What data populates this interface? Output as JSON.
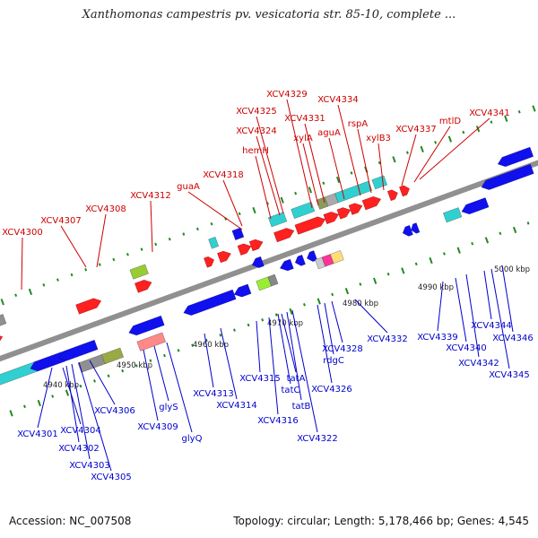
{
  "title": "Xanthomonas campestris pv. vesicatoria str. 85-10, complete ...",
  "footer": {
    "accession": "Accession: NC_007508",
    "topology": "Topology: circular; Length: 5,178,466 bp; Genes: 4,545"
  },
  "colors": {
    "backbone": "#909090",
    "forward_label": "#cc0000",
    "reverse_label": "#0000cc",
    "tick": "#228822"
  },
  "scale_labels": [
    "4940 kbp",
    "4950 kbp",
    "4960 kbp",
    "4970 kbp",
    "4980 kbp",
    "4990 kbp",
    "5000 kbp"
  ],
  "forward_genes": [
    "XCV4300",
    "XCV4307",
    "XCV4308",
    "XCV4312",
    "guaA",
    "XCV4318",
    "hemH",
    "XCV4324",
    "XCV4325",
    "XCV4329",
    "xylA",
    "XCV4331",
    "aguA",
    "XCV4334",
    "rspA",
    "xylB3",
    "XCV4337",
    "mtlD",
    "XCV4341"
  ],
  "reverse_genes": [
    "XCV4301",
    "XCV4304",
    "XCV4302",
    "XCV4303",
    "XCV4305",
    "XCV4306",
    "XCV4309",
    "glyS",
    "glyQ",
    "XCV4313",
    "XCV4314",
    "XCV4315",
    "XCV4316",
    "tatC",
    "tatA",
    "tatB",
    "XCV4322",
    "XCV4326",
    "rdgC",
    "XCV4328",
    "XCV4332",
    "XCV4339",
    "XCV4340",
    "XCV4342",
    "XCV4344",
    "XCV4345",
    "XCV4346"
  ]
}
